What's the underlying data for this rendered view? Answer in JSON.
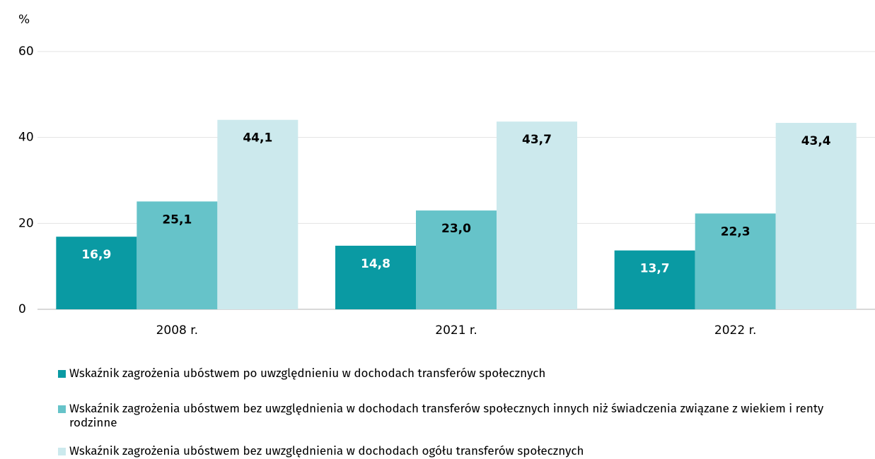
{
  "chart_data": {
    "type": "bar",
    "y_label": "%",
    "categories": [
      "2008 r.",
      "2021 r.",
      "2022 r."
    ],
    "series": [
      {
        "name": "Wskaźnik zagrożenia ubóstwem po uwzględnieniu w dochodach transferów społecznych",
        "color": "#0a9aa3",
        "label_color": "#ffffff",
        "values": [
          16.9,
          14.8,
          13.7
        ],
        "value_labels": [
          "16,9",
          "14,8",
          "13,7"
        ]
      },
      {
        "name": "Wskaźnik zagrożenia ubóstwem bez uwzględnienia w dochodach transferów społecznych innych niż świadczenia związane z wiekiem i renty rodzinne",
        "color": "#66c3c9",
        "label_color": "#000000",
        "values": [
          25.1,
          23.0,
          22.3
        ],
        "value_labels": [
          "25,1",
          "23,0",
          "22,3"
        ]
      },
      {
        "name": "Wskaźnik zagrożenia ubóstwem bez uwzględnienia w dochodach ogółu  transferów społecznych",
        "color": "#cce9ed",
        "label_color": "#000000",
        "values": [
          44.1,
          43.7,
          43.4
        ],
        "value_labels": [
          "44,1",
          "43,7",
          "43,4"
        ]
      }
    ],
    "ylim": [
      0,
      60
    ],
    "yticks": [
      0,
      20,
      40,
      60
    ],
    "grid": true
  }
}
